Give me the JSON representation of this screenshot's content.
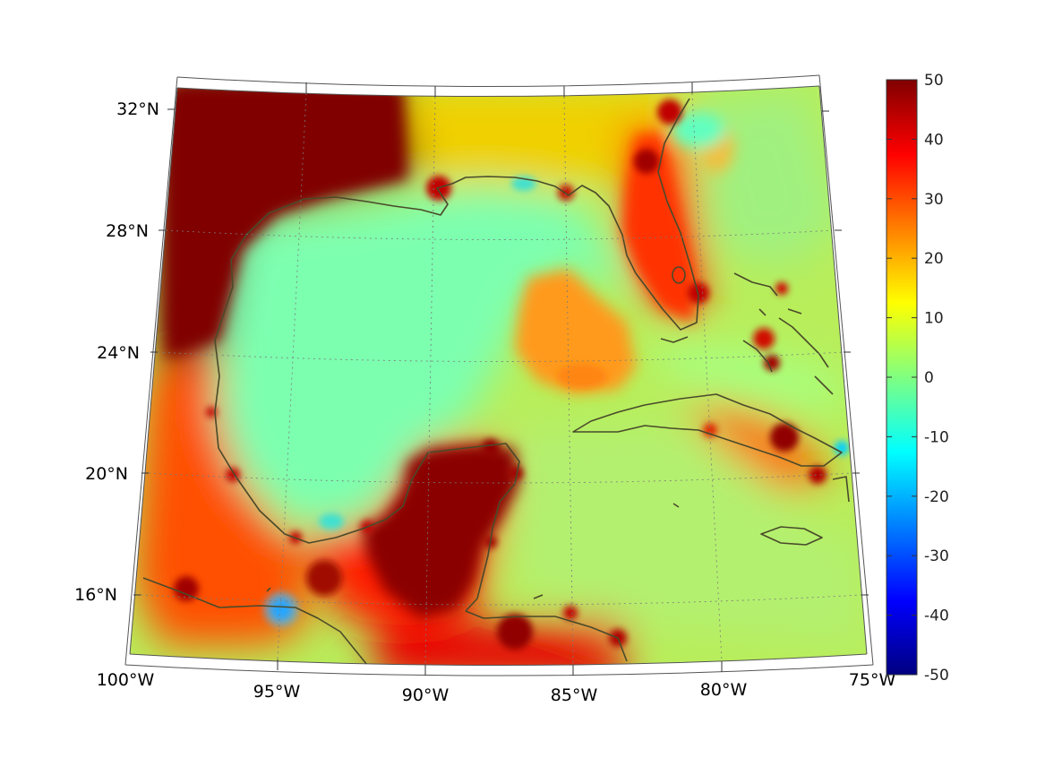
{
  "map": {
    "type": "heatmap",
    "projection": "conic",
    "region": "Gulf of Mexico and Caribbean",
    "lon_range": [
      -100,
      -75
    ],
    "lat_range": [
      14,
      33
    ],
    "gridlines": true,
    "coastlines": true,
    "lon_ticks": [
      "100°W",
      "95°W",
      "90°W",
      "85°W",
      "80°W",
      "75°W"
    ],
    "lat_ticks": [
      "32°N",
      "28°N",
      "24°N",
      "20°N",
      "16°N"
    ]
  },
  "colorbar": {
    "colormap": "jet",
    "range": [
      -50,
      50
    ],
    "ticks": [
      "50",
      "40",
      "30",
      "20",
      "10",
      "0",
      "-10",
      "-20",
      "-30",
      "-40",
      "-50"
    ]
  },
  "chart_data": {
    "type": "heatmap",
    "x_label": "",
    "y_label": "",
    "xlim": [
      -100,
      -75
    ],
    "ylim": [
      14,
      33
    ],
    "clim": [
      -50,
      50
    ],
    "colors": {
      "coast": "#4a4a2a",
      "grid": "#7a7a7a"
    }
  }
}
